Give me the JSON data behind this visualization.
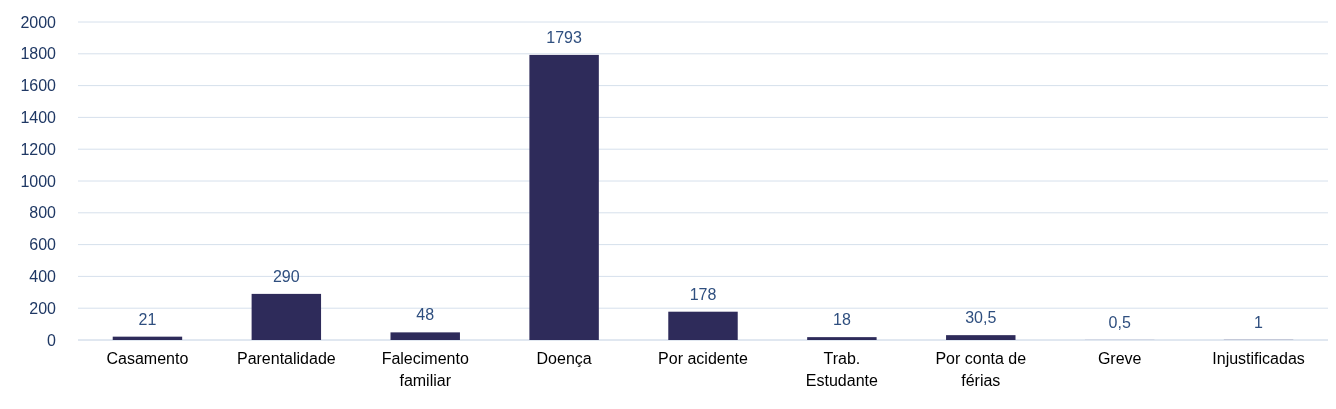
{
  "chart_data": {
    "type": "bar",
    "categories": [
      "Casamento",
      "Parentalidade",
      "Falecimento familiar",
      "Doença",
      "Por acidente",
      "Trab. Estudante",
      "Por conta de férias",
      "Greve",
      "Injustificadas"
    ],
    "values": [
      21,
      290,
      48,
      1793,
      178,
      18,
      30.5,
      0.5,
      1
    ],
    "value_labels": [
      "21",
      "290",
      "48",
      "1793",
      "178",
      "18",
      "30,5",
      "0,5",
      "1"
    ],
    "color": "#2e2b5a",
    "ylim": [
      0,
      2000
    ],
    "yticks": [
      0,
      200,
      400,
      600,
      800,
      1000,
      1200,
      1400,
      1600,
      1800,
      2000
    ],
    "grid": "y"
  }
}
